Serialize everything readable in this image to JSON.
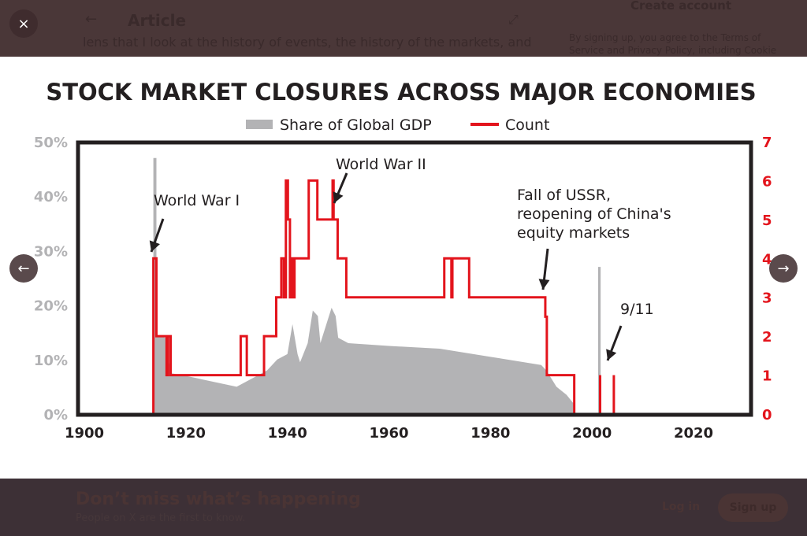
{
  "background_page": {
    "header_title": "Article",
    "body_snippet": "lens that I look at the history of events, the history of the markets, and",
    "sidebar_title": "Create account",
    "sidebar_terms": "By signing up, you agree to the Terms of Service and Privacy Policy, including Cookie"
  },
  "viewer": {
    "close_icon": "close-icon",
    "prev_icon": "arrow-left-icon",
    "next_icon": "arrow-right-icon",
    "close_label": "×",
    "prev_label": "←",
    "next_label": "→"
  },
  "banner": {
    "title": "Don’t miss what’s happening",
    "subtitle": "People on X are the first to know.",
    "login": "Log in",
    "signup": "Sign up"
  },
  "chart_data": {
    "type": "area+line",
    "title": "STOCK MARKET CLOSURES ACROSS MAJOR ECONOMIES",
    "legend": [
      {
        "name": "Share of Global GDP",
        "color": "#b3b3b5"
      },
      {
        "name": "Count",
        "color": "#e3141c"
      }
    ],
    "legend_placement": "top-center",
    "xlim": [
      1900,
      2030
    ],
    "x_ticks": [
      "1900",
      "1920",
      "1940",
      "1960",
      "1980",
      "2000",
      "2020"
    ],
    "y_left_ticks": [
      "0%",
      "10%",
      "20%",
      "30%",
      "40%",
      "50%"
    ],
    "y_left_lim": [
      0,
      50
    ],
    "y_right_ticks": [
      "0",
      "1",
      "2",
      "3",
      "4",
      "5",
      "6",
      "7"
    ],
    "y_right_lim": [
      0,
      7
    ],
    "grid": false,
    "series": [
      {
        "name": "Share of Global GDP",
        "type": "area",
        "unit": "%",
        "points": [
          [
            1913.6,
            0
          ],
          [
            1913.6,
            47
          ],
          [
            1914.2,
            47
          ],
          [
            1914.2,
            14.5
          ],
          [
            1916,
            14
          ],
          [
            1917,
            7.5
          ],
          [
            1920,
            7
          ],
          [
            1925,
            6
          ],
          [
            1930,
            5
          ],
          [
            1933,
            6.5
          ],
          [
            1936,
            8
          ],
          [
            1938,
            10
          ],
          [
            1940,
            11
          ],
          [
            1941,
            16.5
          ],
          [
            1942,
            11
          ],
          [
            1942.5,
            9.5
          ],
          [
            1944,
            13
          ],
          [
            1945,
            19
          ],
          [
            1946,
            18
          ],
          [
            1946.5,
            13
          ],
          [
            1948.7,
            19.5
          ],
          [
            1949.5,
            18
          ],
          [
            1950,
            14
          ],
          [
            1952,
            13
          ],
          [
            1960,
            12.5
          ],
          [
            1970,
            12
          ],
          [
            1980,
            10.5
          ],
          [
            1990,
            9
          ],
          [
            1991,
            8
          ],
          [
            1993,
            5
          ],
          [
            1995,
            3.5
          ],
          [
            1996.3,
            2
          ],
          [
            1996.3,
            0
          ],
          [
            2001.2,
            0
          ],
          [
            2001.2,
            27
          ],
          [
            2001.7,
            27
          ],
          [
            2001.7,
            0
          ]
        ]
      },
      {
        "name": "Count",
        "type": "step",
        "points": [
          [
            1913.6,
            0
          ],
          [
            1913.6,
            4
          ],
          [
            1914.2,
            4
          ],
          [
            1914.2,
            2
          ],
          [
            1916.2,
            2
          ],
          [
            1916.2,
            1
          ],
          [
            1916.5,
            1
          ],
          [
            1916.5,
            2
          ],
          [
            1917,
            2
          ],
          [
            1917,
            1
          ],
          [
            1930.8,
            1
          ],
          [
            1930.8,
            2
          ],
          [
            1932,
            2
          ],
          [
            1932,
            1
          ],
          [
            1935.4,
            1
          ],
          [
            1935.4,
            2
          ],
          [
            1937.8,
            2
          ],
          [
            1937.8,
            3
          ],
          [
            1938.8,
            3
          ],
          [
            1938.8,
            4
          ],
          [
            1939.3,
            4
          ],
          [
            1939.3,
            3
          ],
          [
            1939.7,
            3
          ],
          [
            1939.7,
            6
          ],
          [
            1940.1,
            6
          ],
          [
            1940.1,
            5
          ],
          [
            1940.5,
            5
          ],
          [
            1940.5,
            3
          ],
          [
            1940.8,
            3
          ],
          [
            1940.8,
            4
          ],
          [
            1941.2,
            4
          ],
          [
            1941.2,
            3
          ],
          [
            1941.4,
            3
          ],
          [
            1941.4,
            4
          ],
          [
            1944.2,
            4
          ],
          [
            1944.2,
            6
          ],
          [
            1945.9,
            6
          ],
          [
            1945.9,
            5
          ],
          [
            1948.9,
            5
          ],
          [
            1948.9,
            6
          ],
          [
            1949.1,
            6
          ],
          [
            1949.1,
            5
          ],
          [
            1949.9,
            5
          ],
          [
            1949.9,
            4
          ],
          [
            1951.6,
            4
          ],
          [
            1951.6,
            3
          ],
          [
            1970.9,
            3
          ],
          [
            1970.9,
            4
          ],
          [
            1972.3,
            4
          ],
          [
            1972.3,
            3
          ],
          [
            1972.5,
            3
          ],
          [
            1972.5,
            4
          ],
          [
            1975.8,
            4
          ],
          [
            1975.8,
            3
          ],
          [
            1990.8,
            3
          ],
          [
            1990.8,
            2.5
          ],
          [
            1991.1,
            2.5
          ],
          [
            1991.1,
            1
          ],
          [
            1996.5,
            1
          ],
          [
            1996.5,
            0
          ]
        ]
      },
      {
        "name": "Count (9/11)",
        "type": "step",
        "points": [
          [
            2001.6,
            0
          ],
          [
            2001.6,
            1
          ],
          [
            2001.6,
            0
          ],
          [
            2004.3,
            0
          ],
          [
            2004.3,
            1
          ],
          [
            2004.3,
            0
          ]
        ]
      }
    ],
    "annotations": [
      {
        "text": "World War I",
        "year": 1914,
        "value_pct": 29
      },
      {
        "text": "World War II",
        "year": 1949,
        "value_pct": 38.5
      },
      {
        "text": "Fall of USSR,",
        "year": 1991,
        "value_pct": 22.5
      },
      {
        "text": "reopening of China's",
        "year": null,
        "value_pct": null
      },
      {
        "text": "equity markets",
        "year": null,
        "value_pct": null
      },
      {
        "text": "9/11",
        "year": 2004,
        "value_pct": 10
      }
    ]
  }
}
